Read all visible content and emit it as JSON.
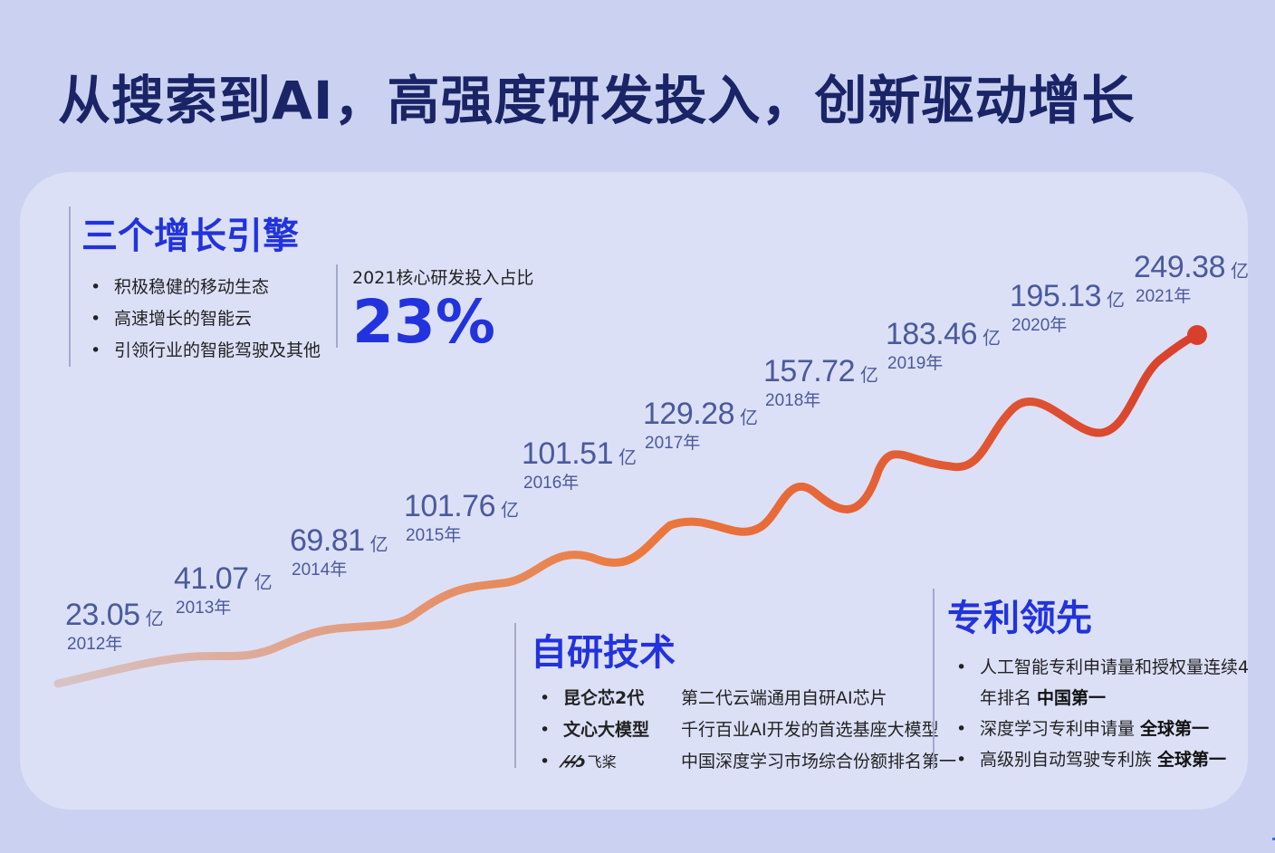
{
  "title": "从搜索到AI，高强度研发投入，创新驱动增长",
  "engines": {
    "title": "三个增长引擎",
    "items": [
      "积极稳健的移动生态",
      "高速增长的智能云",
      "引领行业的智能驾驶及其他"
    ]
  },
  "rd_ratio": {
    "label": "2021核心研发投入占比",
    "value": "23%"
  },
  "tech": {
    "title": "自研技术",
    "items": [
      {
        "name": "昆仑芯2代",
        "desc": "第二代云端通用自研AI芯片"
      },
      {
        "name": "文心大模型",
        "desc": "千行百业AI开发的首选基座大模型"
      },
      {
        "logo": "飞桨",
        "desc": "中国深度学习市场综合份额排名第一"
      }
    ]
  },
  "patent": {
    "title": "专利领先",
    "items": [
      {
        "text": "人工智能专利申请量和授权量连续4",
        "text2": "年排名 ",
        "bold": "中国第一"
      },
      {
        "text": "深度学习专利申请量 ",
        "bold": "全球第一"
      },
      {
        "text": "高级别自动驾驶专利族 ",
        "bold": "全球第一"
      }
    ]
  },
  "chart_data": {
    "type": "line",
    "unit": "亿",
    "x": [
      "2012年",
      "2013年",
      "2014年",
      "2015年",
      "2016年",
      "2017年",
      "2018年",
      "2019年",
      "2020年",
      "2021年"
    ],
    "values": [
      23.05,
      41.07,
      69.81,
      101.76,
      101.51,
      129.28,
      157.72,
      183.46,
      195.13,
      249.38
    ],
    "labels": [
      "23.05",
      "41.07",
      "69.81",
      "101.76",
      "101.51",
      "129.28",
      "157.72",
      "183.46",
      "195.13",
      "249.38"
    ],
    "colors": {
      "start": "#d7c3c6",
      "mid": "#ec7a3e",
      "end": "#d8402b",
      "label": "#4a5a9c"
    },
    "grid": false,
    "legend": "none"
  }
}
